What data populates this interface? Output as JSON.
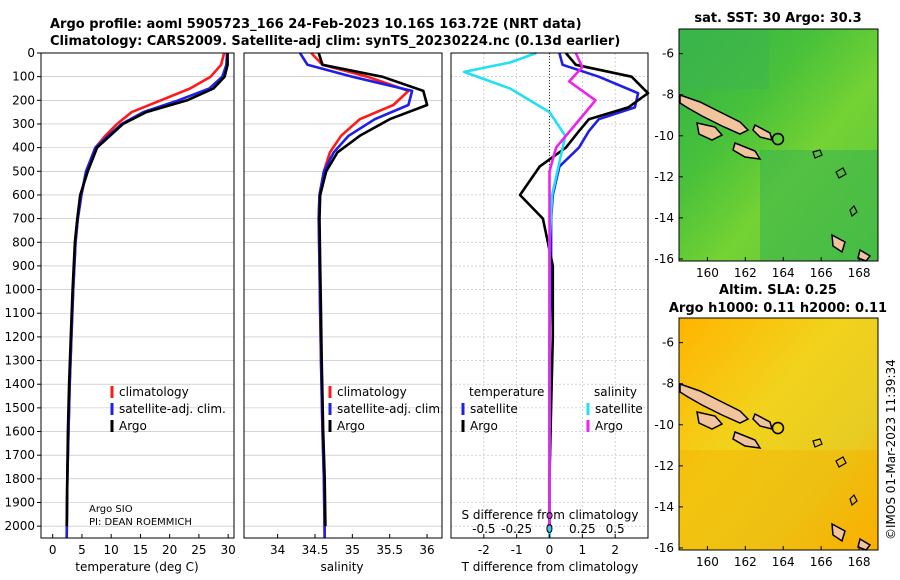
{
  "title": {
    "line1": "Argo profile: aoml 5905723_166 24-Feb-2023 10.16S 163.72E (NRT data)",
    "line2": "Climatology: CARS2009. Satellite-adj clim: synTS_20230224.nc (0.13d earlier)"
  },
  "credit": {
    "institution": "Argo SIO",
    "pi": "PI: DEAN ROEMMICH",
    "watermark": "©IMOS 01-Mar-2023 11:39:34"
  },
  "legend": {
    "climatology": "climatology",
    "satellite_adj": "satellite-adj. clim.",
    "argo": "Argo",
    "temperature_head": "temperature",
    "salinity_head": "salinity",
    "satellite": "satellite"
  },
  "colors": {
    "climatology": "#ff1a1a",
    "satellite": "#1f1fe6",
    "argo": "#000000",
    "sat_salinity": "#22e0f0",
    "argo_salinity": "#ee22ee"
  },
  "chart_data": [
    {
      "type": "line",
      "title": "",
      "xlabel": "temperature (deg C)",
      "ylabel": "",
      "xlim": [
        -2,
        31
      ],
      "ylim": [
        2050,
        0
      ],
      "xticks": [
        0,
        5,
        10,
        15,
        20,
        25,
        30
      ],
      "yticks": [
        0,
        100,
        200,
        300,
        400,
        500,
        600,
        700,
        800,
        900,
        1000,
        1100,
        1200,
        1300,
        1400,
        1500,
        1600,
        1700,
        1800,
        1900,
        2000
      ],
      "series": [
        {
          "name": "climatology",
          "color_key": "climatology",
          "x": [
            29.3,
            28.8,
            27.0,
            23.5,
            18.5,
            13.5,
            11.0,
            9.0,
            7.3,
            5.8,
            4.9,
            4.3,
            3.9,
            3.5,
            3.2,
            2.9,
            2.7,
            2.5,
            2.4
          ],
          "depth": [
            0,
            50,
            100,
            150,
            200,
            250,
            300,
            350,
            400,
            500,
            600,
            700,
            800,
            1000,
            1200,
            1400,
            1600,
            1800,
            2050
          ]
        },
        {
          "name": "satellite-adj. clim.",
          "color_key": "satellite",
          "x": [
            29.8,
            29.7,
            29.0,
            26.8,
            21.5,
            15.5,
            11.8,
            9.5,
            7.3,
            5.7,
            4.9,
            4.3,
            3.9,
            3.5,
            3.2,
            2.9,
            2.7,
            2.5,
            2.4
          ],
          "depth": [
            0,
            50,
            100,
            150,
            200,
            250,
            300,
            350,
            400,
            500,
            600,
            700,
            800,
            1000,
            1200,
            1400,
            1600,
            1800,
            2050
          ]
        },
        {
          "name": "Argo",
          "color_key": "argo",
          "x": [
            29.9,
            29.9,
            29.4,
            27.5,
            23.0,
            16.0,
            12.0,
            9.8,
            7.6,
            6.0,
            4.7,
            4.2,
            3.8,
            3.4,
            3.1,
            2.8,
            2.6,
            2.5,
            2.4
          ],
          "depth": [
            0,
            50,
            100,
            150,
            200,
            250,
            300,
            350,
            400,
            500,
            600,
            700,
            800,
            1000,
            1200,
            1400,
            1600,
            1800,
            2000
          ]
        }
      ]
    },
    {
      "type": "line",
      "title": "",
      "xlabel": "salinity",
      "ylabel": "",
      "xlim": [
        33.55,
        36.2
      ],
      "ylim": [
        2050,
        0
      ],
      "xticks": [
        34,
        34.5,
        35,
        35.5,
        36
      ],
      "series": [
        {
          "name": "climatology",
          "color_key": "climatology",
          "x": [
            34.45,
            34.6,
            35.2,
            35.75,
            35.55,
            35.1,
            34.85,
            34.7,
            34.62,
            34.56,
            34.55,
            34.56,
            34.57,
            34.58,
            34.6,
            34.62,
            34.63
          ],
          "depth": [
            0,
            50,
            100,
            160,
            220,
            280,
            350,
            420,
            500,
            600,
            700,
            900,
            1100,
            1300,
            1600,
            1800,
            2050
          ]
        },
        {
          "name": "satellite-adj. clim.",
          "color_key": "satellite",
          "x": [
            34.3,
            34.4,
            35.0,
            35.8,
            35.75,
            35.3,
            34.95,
            34.75,
            34.62,
            34.56,
            34.55,
            34.56,
            34.57,
            34.58,
            34.6,
            34.62,
            34.63
          ],
          "depth": [
            0,
            50,
            100,
            160,
            220,
            280,
            350,
            420,
            500,
            600,
            700,
            900,
            1100,
            1300,
            1600,
            1800,
            2050
          ]
        },
        {
          "name": "Argo",
          "color_key": "argo",
          "x": [
            34.55,
            34.6,
            35.4,
            35.95,
            36.0,
            35.5,
            35.1,
            34.8,
            34.65,
            34.57,
            34.56,
            34.57,
            34.58,
            34.59,
            34.61,
            34.63,
            34.64
          ],
          "depth": [
            0,
            50,
            100,
            160,
            220,
            280,
            350,
            420,
            500,
            600,
            700,
            900,
            1100,
            1300,
            1600,
            1800,
            2000
          ]
        }
      ]
    },
    {
      "type": "line",
      "title": "",
      "xlabel": "T difference from climatology",
      "ylabel": "",
      "top_label": "S difference from climatology",
      "xlim": [
        -3,
        3
      ],
      "s_xlim": [
        -0.75,
        0.75
      ],
      "ylim": [
        2050,
        0
      ],
      "xticks": [
        -2,
        -1,
        0,
        1,
        2
      ],
      "xticklabels": [
        "-2",
        "-1",
        "0",
        "1",
        "2"
      ],
      "s_xticks": [
        -0.5,
        -0.25,
        0,
        0.25,
        0.5
      ],
      "s_xticklabels": [
        "-0.5",
        "-0.25",
        "0",
        "0.25",
        "0.5"
      ],
      "series": [
        {
          "name": "temperature satellite",
          "color_key": "satellite",
          "axis": "T",
          "x": [
            0.3,
            0.4,
            1.5,
            2.7,
            2.6,
            1.5,
            1.2,
            0.9,
            0.3,
            0.1,
            0.05,
            0.05,
            0.0,
            0.0,
            0.0,
            0.0
          ],
          "depth": [
            0,
            50,
            100,
            170,
            230,
            280,
            330,
            400,
            480,
            600,
            700,
            900,
            1200,
            1500,
            1800,
            2050
          ]
        },
        {
          "name": "temperature Argo",
          "color_key": "argo",
          "axis": "T",
          "x": [
            0.5,
            0.8,
            2.5,
            3.0,
            2.4,
            1.2,
            0.9,
            0.5,
            -0.3,
            -0.9,
            -0.2,
            0.1,
            0.1,
            0.05,
            0.0,
            0.0
          ],
          "depth": [
            0,
            50,
            100,
            170,
            230,
            280,
            330,
            400,
            480,
            600,
            700,
            900,
            1200,
            1500,
            1800,
            2000
          ]
        },
        {
          "name": "salinity satellite",
          "color_key": "sat_salinity",
          "axis": "S",
          "x": [
            -0.1,
            -0.3,
            -0.65,
            -0.3,
            0.0,
            0.12,
            0.08,
            0.02,
            0.0,
            0.0,
            0.0,
            0.0
          ],
          "depth": [
            0,
            40,
            80,
            150,
            250,
            350,
            450,
            600,
            800,
            1200,
            1600,
            2050
          ]
        },
        {
          "name": "salinity Argo",
          "color_key": "argo_salinity",
          "axis": "S",
          "x": [
            0.2,
            0.25,
            0.15,
            0.35,
            0.2,
            0.05,
            0.0,
            0.0,
            0.0,
            0.0,
            0.0,
            0.0
          ],
          "depth": [
            0,
            60,
            120,
            200,
            300,
            400,
            500,
            700,
            1000,
            1400,
            1800,
            2000
          ]
        }
      ]
    },
    {
      "type": "heatmap",
      "title": "sat. SST: 30 Argo: 30.3",
      "xlim": [
        158.5,
        169
      ],
      "ylim": [
        -16.1,
        -4.8
      ],
      "xticks": [
        160,
        162,
        164,
        166,
        168
      ],
      "yticks": [
        -6,
        -8,
        -10,
        -12,
        -14,
        -16
      ],
      "marker": {
        "lon": 163.72,
        "lat": -10.16
      }
    },
    {
      "type": "heatmap",
      "title": "Altim. SLA: 0.25",
      "subtitle": "Argo h1000: 0.11 h2000: 0.11",
      "xlim": [
        158.5,
        169
      ],
      "ylim": [
        -16.1,
        -4.8
      ],
      "xticks": [
        160,
        162,
        164,
        166,
        168
      ],
      "yticks": [
        -6,
        -8,
        -10,
        -12,
        -14,
        -16
      ],
      "marker": {
        "lon": 163.72,
        "lat": -10.16
      }
    }
  ]
}
